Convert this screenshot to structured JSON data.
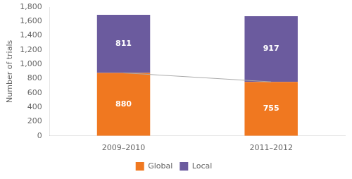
{
  "chart_data": {
    "type": "bar",
    "stacked": true,
    "categories": [
      "2009–2010",
      "2011–2012"
    ],
    "series": [
      {
        "name": "Global",
        "color": "#F07820",
        "values": [
          880,
          755
        ]
      },
      {
        "name": "Local",
        "color": "#6B5B9E",
        "values": [
          811,
          917
        ]
      },
      {
        "type": "line",
        "color": "#aaaaaa",
        "values": [
          880,
          755
        ]
      }
    ],
    "ylabel": "Number of trials",
    "ylim": [
      0,
      1800
    ],
    "yticks": [
      0,
      200,
      400,
      600,
      800,
      {
        "value": 1000,
        "label": "1,000"
      },
      {
        "value": 1200,
        "label": "1,200"
      },
      {
        "value": 1400,
        "label": "1,400"
      },
      {
        "value": 1600,
        "label": "1,600"
      },
      {
        "value": 1800,
        "label": "1,800"
      }
    ],
    "grid": false,
    "legend": "bottom",
    "data_labels": true
  }
}
